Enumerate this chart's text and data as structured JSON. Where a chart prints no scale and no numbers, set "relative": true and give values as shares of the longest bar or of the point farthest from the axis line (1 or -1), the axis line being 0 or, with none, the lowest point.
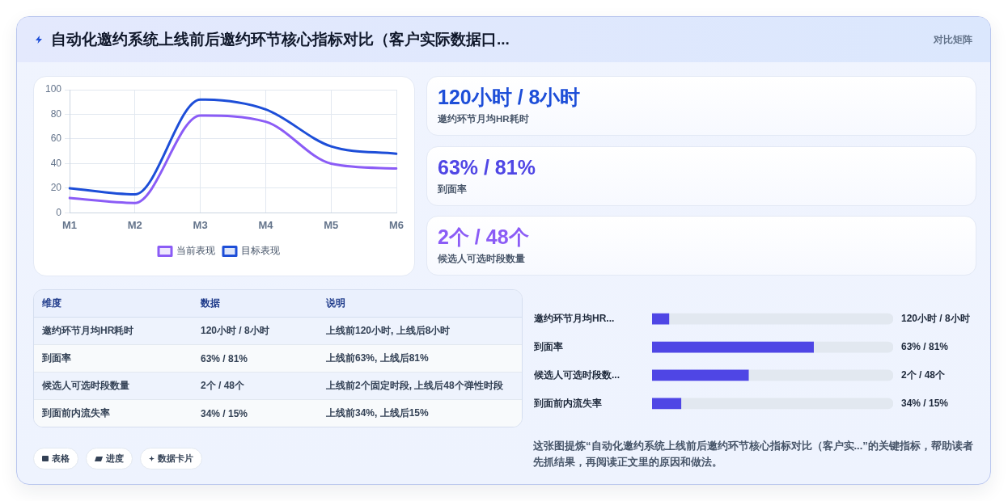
{
  "chart_data": [
    {
      "type": "line",
      "title": "自动化邀约系统上线前后邀约环节核心指标对比（客户实际数据口...",
      "annotations": [
        "对比矩阵"
      ],
      "categories": [
        "M1",
        "M2",
        "M3",
        "M4",
        "M5",
        "M6"
      ],
      "series": [
        {
          "name": "当前表现",
          "color": "#8b5cf6",
          "values": [
            12,
            8,
            79,
            74,
            40,
            36
          ]
        },
        {
          "name": "目标表现",
          "color": "#1d4ed8",
          "values": [
            20,
            15,
            92,
            84,
            54,
            48
          ]
        }
      ],
      "ylim": [
        0,
        100
      ],
      "yticks": [
        0,
        20,
        40,
        60,
        80,
        100
      ],
      "grid": true,
      "legend": "bottom"
    },
    {
      "type": "other",
      "categories": [
        "邀约环节月均HR耗时",
        "到面率",
        "候选人可选时段数量"
      ],
      "value_labels": [
        "120小时 / 8小时",
        "63% / 81%",
        "2个 / 48个"
      ]
    },
    {
      "type": "other",
      "categories": [
        "维度",
        "数据",
        "说明"
      ],
      "cell_labels": [
        [
          "邀约环节月均HR耗时",
          "120小时 / 8小时",
          "上线前120小时, 上线后8小时"
        ],
        [
          "到面率",
          "63% / 81%",
          "上线前63%, 上线后81%"
        ],
        [
          "候选人可选时段数量",
          "2个 / 48个",
          "上线前2个固定时段, 上线后48个弹性时段"
        ],
        [
          "到面前内流失率",
          "34% / 15%",
          "上线前34%, 上线后15%"
        ]
      ],
      "annotations": [
        "表格",
        "进度",
        "数据卡片"
      ]
    },
    {
      "type": "bar",
      "orientation": "horizontal",
      "stacked": true,
      "relative": true,
      "tick_labels": "y",
      "categories": [
        "邀约环节月均HR...",
        "到面率",
        "候选人可选时段数...",
        "到面前内流失率"
      ],
      "series": [
        {
          "color": "#4f46e5",
          "values": [
            0.07,
            0.67,
            0.4,
            0.12
          ]
        },
        {
          "color": "#e2e8f0",
          "values": [
            0.93,
            0.33,
            0.6,
            0.88
          ]
        }
      ],
      "annotations": [
        "120小时 / 8小时",
        "63% / 81%",
        "2个 / 48个",
        "34% / 15%",
        "这张图提炼“自动化邀约系统上线前后邀约环节核心指标对比（客户实...”的关键指标，帮助读者先抓结果，再阅读正文里的原因和做法。"
      ]
    }
  ]
}
